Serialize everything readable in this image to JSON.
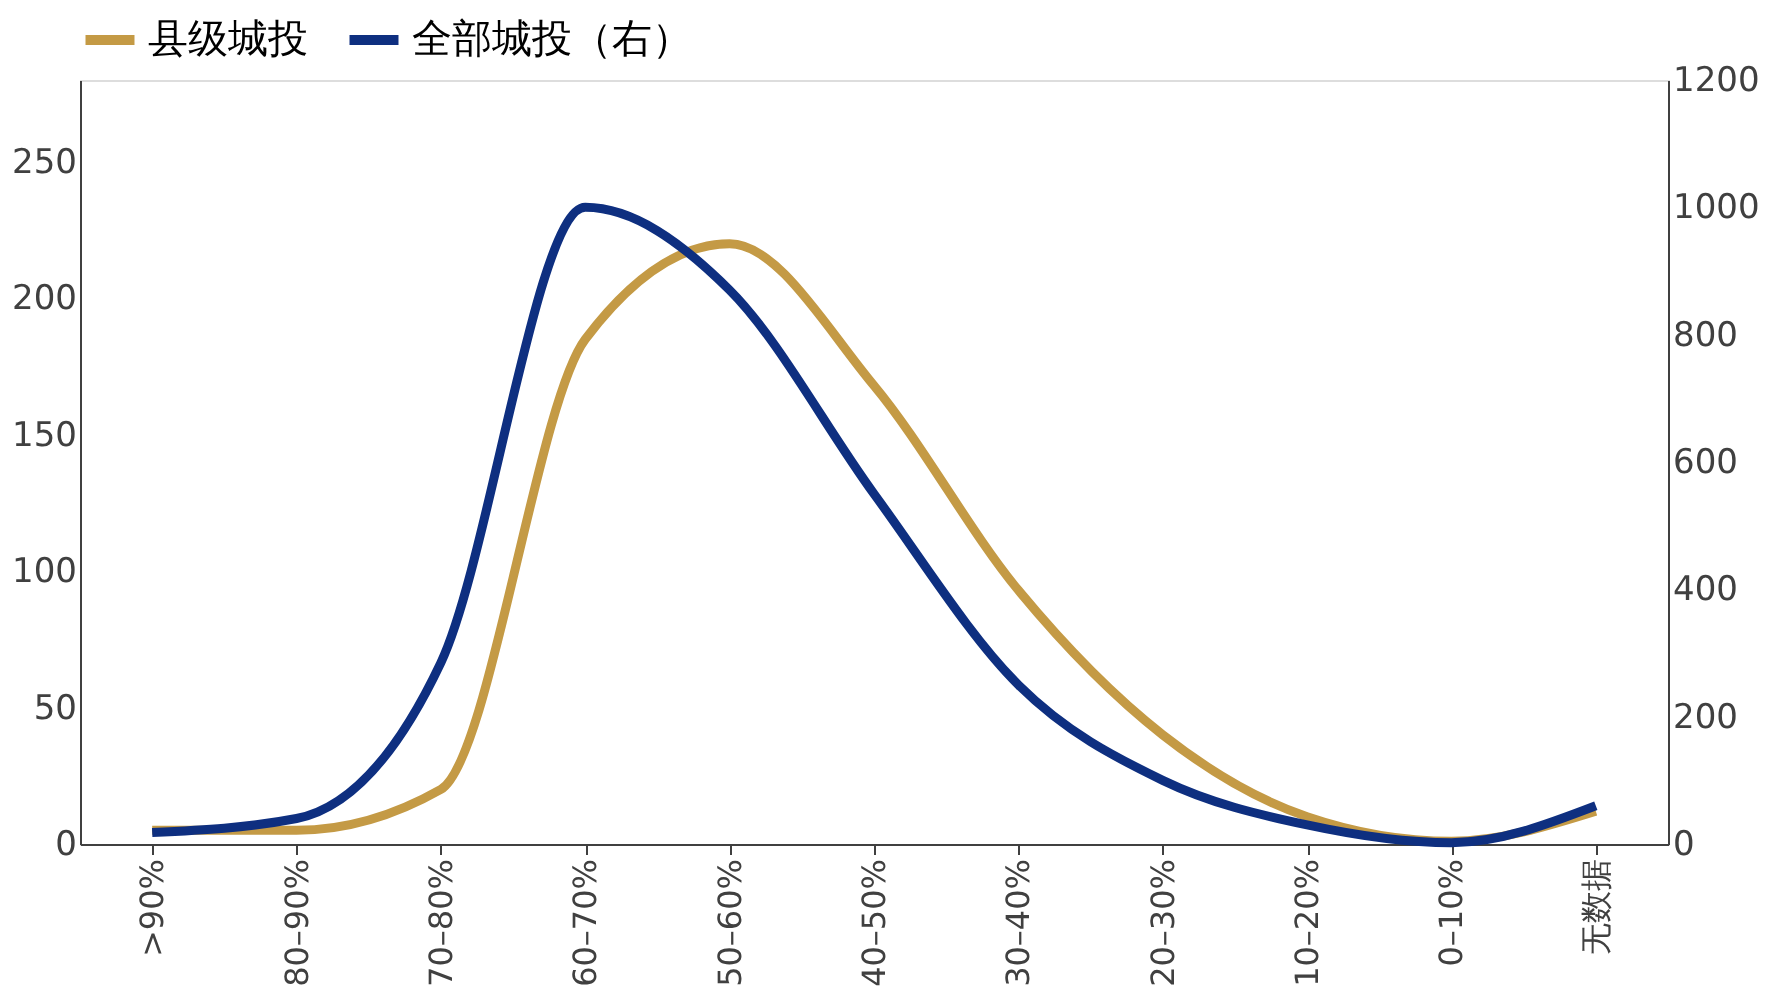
{
  "chart_data": {
    "type": "line",
    "categories": [
      ">90%",
      "80–90%",
      "70–80%",
      "60–70%",
      "50–60%",
      "40–50%",
      "30–40%",
      "20–30%",
      "10–20%",
      "0–10%",
      "无数据"
    ],
    "series": [
      {
        "name": "县级城投",
        "color": "#c49a45",
        "values": [
          5,
          5,
          20,
          185,
          220,
          168,
          93,
          40,
          10,
          1,
          12
        ]
      },
      {
        "name": "全部城投（右）",
        "color": "#0e2f80",
        "axis": "y2",
        "values": [
          18,
          40,
          285,
          1000,
          870,
          550,
          250,
          100,
          30,
          2,
          60
        ]
      }
    ],
    "ylim": [
      0,
      280
    ],
    "yticks": [
      0,
      50,
      100,
      150,
      200,
      250
    ],
    "y2lim": [
      0,
      1200
    ],
    "y2ticks": [
      0,
      200,
      400,
      600,
      800,
      1000,
      1200
    ],
    "grid": false,
    "legend": "top",
    "marker": "none",
    "line_style": "solid"
  }
}
